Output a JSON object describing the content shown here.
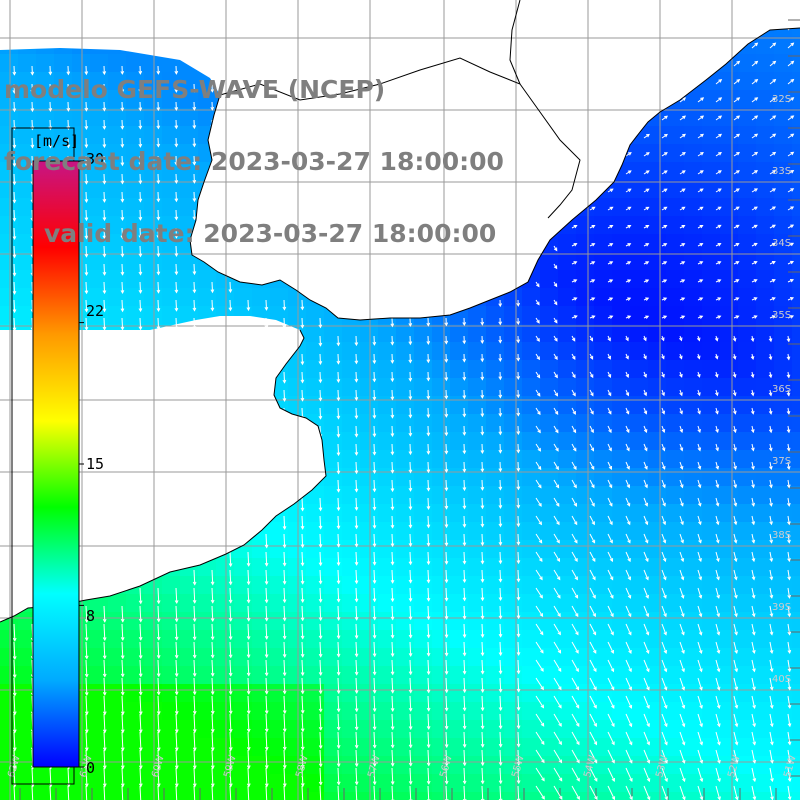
{
  "title": {
    "model": "modelo GEFS-WAVE (NCEP)",
    "forecast": "forecast date: 2023-03-27 18:00:00",
    "valid": "valid date: 2023-03-27 18:00:00"
  },
  "colorbar": {
    "unit": "[m/s]",
    "min": 0,
    "max": 30,
    "ticks": [
      {
        "value": 30,
        "label": "30"
      },
      {
        "value": 22,
        "label": "22"
      },
      {
        "value": 15,
        "label": "15"
      },
      {
        "value": 8,
        "label": "8"
      },
      {
        "value": 0,
        "label": "0"
      }
    ],
    "colors": [
      "#0000ff",
      "#00aaff",
      "#00ffff",
      "#00ff00",
      "#ffff00",
      "#ff9900",
      "#ff0000",
      "#c71585"
    ]
  },
  "map": {
    "land_color": "#ffffff",
    "coast_color": "#000000",
    "grid_color": "#9a9a9a",
    "arrow_color": "#ffffff",
    "lat_labels": [
      "32S",
      "33S",
      "34S",
      "35S",
      "36S",
      "37S",
      "38S",
      "39S",
      "40S"
    ],
    "lon_labels": [
      "62W",
      "61W",
      "60W",
      "59W",
      "58W",
      "57W",
      "56W",
      "55W",
      "54W",
      "53W",
      "52W",
      "51W"
    ]
  }
}
